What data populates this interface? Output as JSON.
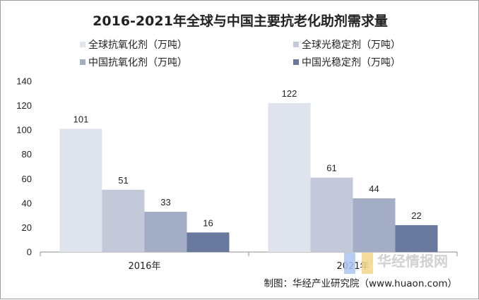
{
  "chart_data": {
    "type": "bar",
    "title": "2016-2021年全球与中国主要抗老化助剂需求量",
    "categories": [
      "2016年",
      "2021年"
    ],
    "series": [
      {
        "name": "全球抗氧化剂（万吨）",
        "color": "#dfe3ec",
        "values": [
          101,
          122
        ]
      },
      {
        "name": "全球光稳定剂（万吨）",
        "color": "#c3c9d9",
        "values": [
          51,
          61
        ]
      },
      {
        "name": "中国抗氧化剂（万吨）",
        "color": "#a3aec6",
        "values": [
          33,
          44
        ]
      },
      {
        "name": "中国光稳定剂（万吨）",
        "color": "#68799d",
        "values": [
          16,
          22
        ]
      }
    ],
    "ylim": [
      0,
      140
    ],
    "yticks": [
      0,
      20,
      40,
      60,
      80,
      100,
      120,
      140
    ],
    "xlabel": "",
    "ylabel": "",
    "grid": false,
    "legend_position": "top"
  },
  "source_text": "制图：华经产业研究院（www.huaon.com）",
  "watermark_text": "华经情报网"
}
